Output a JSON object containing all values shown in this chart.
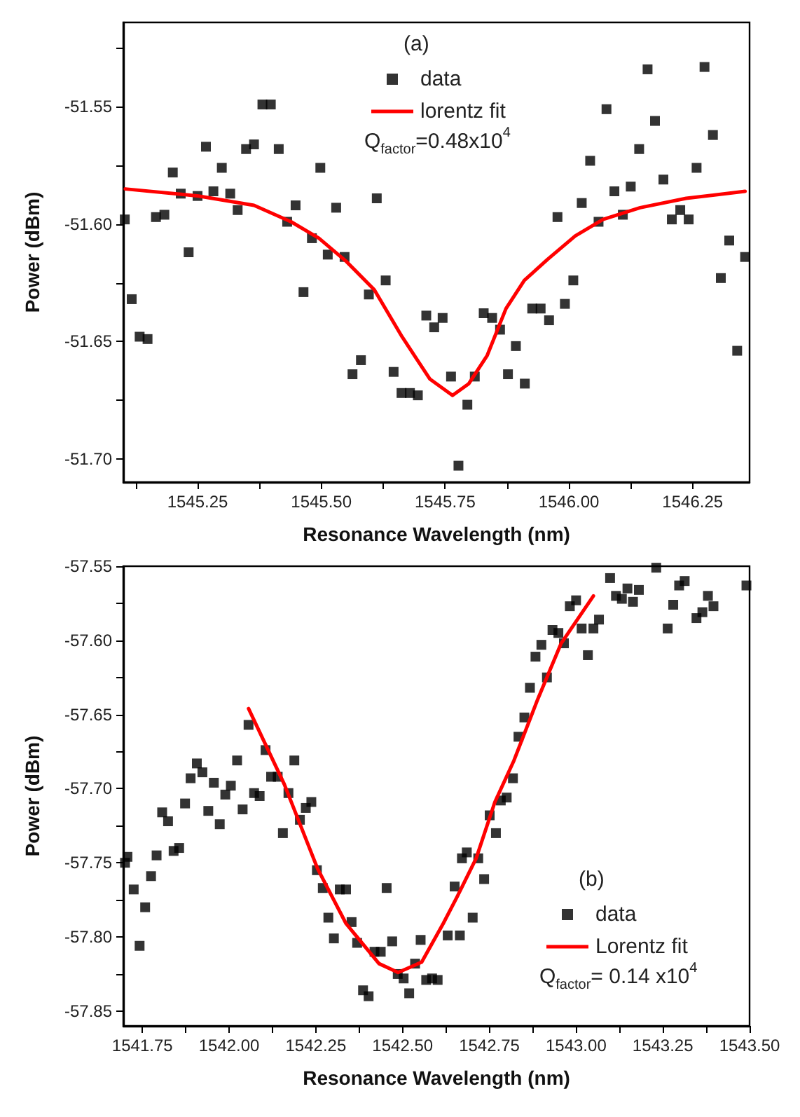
{
  "chart_data": [
    {
      "type": "scatter",
      "xlabel": "Resonance Wavelength (nm)",
      "ylabel": "Power (dBm)",
      "xlim": [
        1545.1,
        1546.365
      ],
      "ylim": [
        -51.71,
        -51.514
      ],
      "xticks": [
        {
          "value": 1545.125,
          "label": null
        },
        {
          "value": 1545.25,
          "label": "1545.25"
        },
        {
          "value": 1545.375,
          "label": null
        },
        {
          "value": 1545.5,
          "label": "1545.50"
        },
        {
          "value": 1545.625,
          "label": null
        },
        {
          "value": 1545.75,
          "label": "1545.75"
        },
        {
          "value": 1545.875,
          "label": null
        },
        {
          "value": 1546,
          "label": "1546.00"
        },
        {
          "value": 1546.125,
          "label": null
        },
        {
          "value": 1546.25,
          "label": "1546.25"
        }
      ],
      "yticks": [
        {
          "value": -51.7,
          "label": "-51.70"
        },
        {
          "value": -51.675,
          "label": null
        },
        {
          "value": -51.65,
          "label": "-51.65"
        },
        {
          "value": -51.625,
          "label": null
        },
        {
          "value": -51.6,
          "label": "-51.60"
        },
        {
          "value": -51.575,
          "label": null
        },
        {
          "value": -51.55,
          "label": "-51.55"
        },
        {
          "value": -51.525,
          "label": null
        }
      ],
      "grid": false,
      "legend": "top right",
      "annotations": [
        "(a)",
        "Q$_{factor}$=0.48x10$^{4}$"
      ],
      "series": [
        {
          "name": "data",
          "marker": "square",
          "color": "#000000",
          "x": [
            1545.103,
            1545.117,
            1545.133,
            1545.149,
            1545.166,
            1545.183,
            1545.2,
            1545.216,
            1545.232,
            1545.25,
            1545.267,
            1545.282,
            1545.299,
            1545.316,
            1545.331,
            1545.348,
            1545.364,
            1545.381,
            1545.398,
            1545.414,
            1545.431,
            1545.448,
            1545.464,
            1545.481,
            1545.498,
            1545.513,
            1545.53,
            1545.547,
            1545.563,
            1545.58,
            1545.596,
            1545.612,
            1545.63,
            1545.646,
            1545.662,
            1545.679,
            1545.695,
            1545.712,
            1545.728,
            1545.745,
            1545.762,
            1545.777,
            1545.795,
            1545.81,
            1545.828,
            1545.845,
            1545.861,
            1545.877,
            1545.893,
            1545.911,
            1545.926,
            1545.943,
            1545.96,
            1545.977,
            1545.992,
            1546.009,
            1546.026,
            1546.043,
            1546.06,
            1546.076,
            1546.092,
            1546.109,
            1546.125,
            1546.142,
            1546.159,
            1546.174,
            1546.191,
            1546.208,
            1546.225,
            1546.242,
            1546.258,
            1546.274,
            1546.291,
            1546.307,
            1546.324,
            1546.34,
            1546.356
          ],
          "values": [
            -51.598,
            -51.632,
            -51.648,
            -51.649,
            -51.597,
            -51.596,
            -51.578,
            -51.587,
            -51.612,
            -51.588,
            -51.567,
            -51.586,
            -51.576,
            -51.587,
            -51.594,
            -51.568,
            -51.566,
            -51.549,
            -51.549,
            -51.568,
            -51.599,
            -51.592,
            -51.629,
            -51.606,
            -51.576,
            -51.613,
            -51.593,
            -51.614,
            -51.664,
            -51.658,
            -51.63,
            -51.589,
            -51.624,
            -51.663,
            -51.672,
            -51.672,
            -51.673,
            -51.639,
            -51.644,
            -51.64,
            -51.665,
            -51.703,
            -51.677,
            -51.665,
            -51.638,
            -51.64,
            -51.645,
            -51.664,
            -51.652,
            -51.668,
            -51.636,
            -51.636,
            -51.641,
            -51.597,
            -51.634,
            -51.624,
            -51.591,
            -51.573,
            -51.599,
            -51.551,
            -51.586,
            -51.596,
            -51.584,
            -51.568,
            -51.534,
            -51.556,
            -51.581,
            -51.598,
            -51.594,
            -51.598,
            -51.576,
            -51.533,
            -51.562,
            -51.623,
            -51.607,
            -51.654,
            -51.614
          ]
        },
        {
          "name": "lorentz fit",
          "type": "line",
          "marker": "none",
          "line_style": "solid",
          "color": "#ff0000",
          "x": [
            1545.104,
            1545.252,
            1545.364,
            1545.439,
            1545.495,
            1545.551,
            1545.607,
            1545.663,
            1545.719,
            1545.765,
            1545.798,
            1545.835,
            1545.873,
            1545.91,
            1545.957,
            1546.013,
            1546.069,
            1546.144,
            1546.237,
            1546.356
          ],
          "values": [
            -51.585,
            -51.588,
            -51.592,
            -51.599,
            -51.606,
            -51.616,
            -51.628,
            -51.648,
            -51.666,
            -51.673,
            -51.668,
            -51.656,
            -51.636,
            -51.624,
            -51.615,
            -51.605,
            -51.598,
            -51.593,
            -51.589,
            -51.586
          ]
        }
      ]
    },
    {
      "type": "scatter",
      "xlabel": "Resonance Wavelength (nm)",
      "ylabel": "Power (dBm)",
      "xlim": [
        1541.695,
        1543.5
      ],
      "ylim": [
        -57.86,
        -57.55
      ],
      "xticks": [
        {
          "value": 1541.75,
          "label": "1541.75"
        },
        {
          "value": 1541.875,
          "label": null
        },
        {
          "value": 1542,
          "label": "1542.00"
        },
        {
          "value": 1542.125,
          "label": null
        },
        {
          "value": 1542.25,
          "label": "1542.25"
        },
        {
          "value": 1542.375,
          "label": null
        },
        {
          "value": 1542.5,
          "label": "1542.50"
        },
        {
          "value": 1542.625,
          "label": null
        },
        {
          "value": 1542.75,
          "label": "1542.75"
        },
        {
          "value": 1542.875,
          "label": null
        },
        {
          "value": 1543,
          "label": "1543.00"
        },
        {
          "value": 1543.125,
          "label": null
        },
        {
          "value": 1543.25,
          "label": "1543.25"
        },
        {
          "value": 1543.375,
          "label": null
        },
        {
          "value": 1543.5,
          "label": "1543.50"
        }
      ],
      "yticks": [
        {
          "value": -57.85,
          "label": "-57.85"
        },
        {
          "value": -57.825,
          "label": null
        },
        {
          "value": -57.8,
          "label": "-57.80"
        },
        {
          "value": -57.775,
          "label": null
        },
        {
          "value": -57.75,
          "label": "-57.75"
        },
        {
          "value": -57.725,
          "label": null
        },
        {
          "value": -57.7,
          "label": "-57.70"
        },
        {
          "value": -57.675,
          "label": null
        },
        {
          "value": -57.65,
          "label": "-57.65"
        },
        {
          "value": -57.625,
          "label": null
        },
        {
          "value": -57.6,
          "label": "-57.60"
        },
        {
          "value": -57.575,
          "label": null
        },
        {
          "value": -57.55,
          "label": "-57.55"
        }
      ],
      "grid": false,
      "legend": "bottom right",
      "annotations": [
        "(b)",
        "Q$_{factor}$= 0.14 x10$^{4}$"
      ],
      "series": [
        {
          "name": "data",
          "marker": "square",
          "color": "#000000",
          "x": [
            1541.7,
            1541.707,
            1541.725,
            1541.742,
            1541.758,
            1541.775,
            1541.791,
            1541.807,
            1541.824,
            1541.84,
            1541.856,
            1541.873,
            1541.889,
            1541.907,
            1541.923,
            1541.94,
            1541.956,
            1541.973,
            1541.989,
            1542.005,
            1542.023,
            1542.039,
            1542.056,
            1542.072,
            1542.088,
            1542.105,
            1542.121,
            1542.14,
            1542.155,
            1542.171,
            1542.188,
            1542.204,
            1542.221,
            1542.237,
            1542.253,
            1542.27,
            1542.286,
            1542.302,
            1542.319,
            1542.337,
            1542.353,
            1542.369,
            1542.386,
            1542.402,
            1542.419,
            1542.437,
            1542.454,
            1542.47,
            1542.486,
            1542.503,
            1542.519,
            1542.536,
            1542.552,
            1542.568,
            1542.585,
            1542.601,
            1542.63,
            1542.65,
            1542.665,
            1542.671,
            1542.685,
            1542.702,
            1542.718,
            1542.735,
            1542.751,
            1542.769,
            1542.783,
            1542.8,
            1542.818,
            1542.834,
            1542.851,
            1542.867,
            1542.883,
            1542.9,
            1542.916,
            1542.932,
            1542.949,
            1542.965,
            1542.982,
            1543.0,
            1543.016,
            1543.034,
            1543.05,
            1543.066,
            1543.098,
            1543.115,
            1543.132,
            1543.148,
            1543.164,
            1543.181,
            1543.231,
            1543.264,
            1543.28,
            1543.297,
            1543.313,
            1543.347,
            1543.364,
            1543.38,
            1543.396,
            1543.491
          ],
          "values": [
            -57.75,
            -57.746,
            -57.768,
            -57.806,
            -57.78,
            -57.759,
            -57.745,
            -57.716,
            -57.722,
            -57.742,
            -57.74,
            -57.71,
            -57.693,
            -57.683,
            -57.689,
            -57.715,
            -57.696,
            -57.724,
            -57.704,
            -57.698,
            -57.681,
            -57.714,
            -57.657,
            -57.703,
            -57.705,
            -57.674,
            -57.692,
            -57.692,
            -57.73,
            -57.703,
            -57.681,
            -57.721,
            -57.713,
            -57.709,
            -57.755,
            -57.767,
            -57.787,
            -57.801,
            -57.768,
            -57.768,
            -57.79,
            -57.804,
            -57.836,
            -57.84,
            -57.81,
            -57.81,
            -57.767,
            -57.803,
            -57.825,
            -57.828,
            -57.838,
            -57.818,
            -57.802,
            -57.829,
            -57.828,
            -57.829,
            -57.799,
            -57.766,
            -57.799,
            -57.747,
            -57.743,
            -57.787,
            -57.747,
            -57.761,
            -57.718,
            -57.73,
            -57.708,
            -57.706,
            -57.693,
            -57.665,
            -57.652,
            -57.632,
            -57.611,
            -57.603,
            -57.625,
            -57.593,
            -57.595,
            -57.602,
            -57.577,
            -57.573,
            -57.592,
            -57.61,
            -57.592,
            -57.586,
            -57.558,
            -57.57,
            -57.572,
            -57.565,
            -57.574,
            -57.566,
            -57.551,
            -57.592,
            -57.576,
            -57.563,
            -57.56,
            -57.585,
            -57.581,
            -57.57,
            -57.577,
            -57.563
          ]
        },
        {
          "name": "Lorentz fit",
          "type": "line",
          "marker": "none",
          "line_style": "solid",
          "color": "#ff0000",
          "x": [
            1542.056,
            1542.159,
            1542.255,
            1542.337,
            1542.432,
            1542.487,
            1542.555,
            1542.617,
            1542.657,
            1542.712,
            1542.766,
            1542.821,
            1542.889,
            1542.957,
            1543.05
          ],
          "values": [
            -57.646,
            -57.697,
            -57.754,
            -57.791,
            -57.818,
            -57.824,
            -57.817,
            -57.791,
            -57.773,
            -57.747,
            -57.709,
            -57.681,
            -57.64,
            -57.602,
            -57.57
          ]
        }
      ]
    }
  ]
}
